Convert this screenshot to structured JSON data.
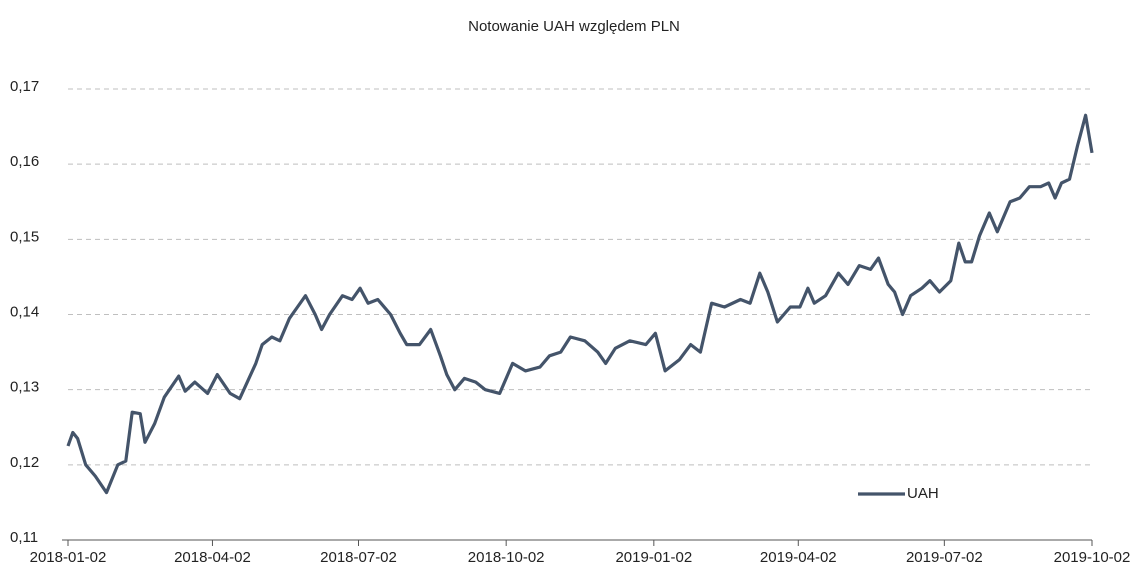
{
  "chart_data": {
    "type": "line",
    "title": "Notowanie UAH względem PLN",
    "x": [
      "2018-01-02",
      "2018-01-05",
      "2018-01-08",
      "2018-01-13",
      "2018-01-19",
      "2018-01-26",
      "2018-02-02",
      "2018-02-07",
      "2018-02-11",
      "2018-02-16",
      "2018-02-19",
      "2018-02-25",
      "2018-03-03",
      "2018-03-12",
      "2018-03-16",
      "2018-03-22",
      "2018-03-30",
      "2018-04-05",
      "2018-04-13",
      "2018-04-19",
      "2018-04-29",
      "2018-05-03",
      "2018-05-09",
      "2018-05-14",
      "2018-05-20",
      "2018-05-25",
      "2018-05-30",
      "2018-06-05",
      "2018-06-09",
      "2018-06-14",
      "2018-06-22",
      "2018-06-28",
      "2018-07-03",
      "2018-07-08",
      "2018-07-14",
      "2018-07-22",
      "2018-07-28",
      "2018-08-01",
      "2018-08-09",
      "2018-08-16",
      "2018-08-22",
      "2018-08-26",
      "2018-08-31",
      "2018-09-06",
      "2018-09-13",
      "2018-09-19",
      "2018-09-28",
      "2018-10-06",
      "2018-10-14",
      "2018-10-23",
      "2018-10-29",
      "2018-11-05",
      "2018-11-11",
      "2018-11-20",
      "2018-11-28",
      "2018-12-03",
      "2018-12-09",
      "2018-12-18",
      "2018-12-28",
      "2019-01-03",
      "2019-01-09",
      "2019-01-18",
      "2019-01-25",
      "2019-01-31",
      "2019-02-07",
      "2019-02-15",
      "2019-02-25",
      "2019-03-03",
      "2019-03-09",
      "2019-03-14",
      "2019-03-20",
      "2019-03-28",
      "2019-04-03",
      "2019-04-08",
      "2019-04-12",
      "2019-04-19",
      "2019-04-27",
      "2019-05-03",
      "2019-05-10",
      "2019-05-17",
      "2019-05-22",
      "2019-05-28",
      "2019-06-01",
      "2019-06-06",
      "2019-06-11",
      "2019-06-18",
      "2019-06-23",
      "2019-06-29",
      "2019-07-06",
      "2019-07-11",
      "2019-07-15",
      "2019-07-19",
      "2019-07-24",
      "2019-07-30",
      "2019-08-04",
      "2019-08-12",
      "2019-08-18",
      "2019-08-24",
      "2019-08-31",
      "2019-09-05",
      "2019-09-09",
      "2019-09-13",
      "2019-09-18",
      "2019-09-23",
      "2019-09-28",
      "2019-10-02"
    ],
    "series": [
      {
        "name": "UAH",
        "color": "#44546a",
        "values": [
          0.1225,
          0.1243,
          0.1235,
          0.12,
          0.1185,
          0.1163,
          0.12,
          0.1205,
          0.127,
          0.1268,
          0.123,
          0.1255,
          0.129,
          0.1318,
          0.1298,
          0.131,
          0.1295,
          0.132,
          0.1295,
          0.1288,
          0.1335,
          0.136,
          0.137,
          0.1365,
          0.1395,
          0.141,
          0.1425,
          0.14,
          0.138,
          0.14,
          0.1425,
          0.142,
          0.1435,
          0.1415,
          0.142,
          0.14,
          0.1375,
          0.136,
          0.136,
          0.138,
          0.1345,
          0.132,
          0.13,
          0.1315,
          0.131,
          0.13,
          0.1295,
          0.1335,
          0.1325,
          0.133,
          0.1345,
          0.135,
          0.137,
          0.1365,
          0.135,
          0.1335,
          0.1355,
          0.1365,
          0.136,
          0.1375,
          0.1325,
          0.134,
          0.136,
          0.135,
          0.1415,
          0.141,
          0.142,
          0.1415,
          0.1455,
          0.143,
          0.139,
          0.141,
          0.141,
          0.1435,
          0.1415,
          0.1425,
          0.1455,
          0.144,
          0.1465,
          0.146,
          0.1475,
          0.144,
          0.143,
          0.14,
          0.1425,
          0.1435,
          0.1445,
          0.143,
          0.1445,
          0.1495,
          0.147,
          0.147,
          0.1505,
          0.1535,
          0.151,
          0.155,
          0.1555,
          0.157,
          0.157,
          0.1575,
          0.1555,
          0.1575,
          0.158,
          0.1625,
          0.1665,
          0.1615
        ]
      }
    ],
    "xlim": [
      "2018-01-02",
      "2019-10-02"
    ],
    "xticks": [
      "2018-01-02",
      "2018-04-02",
      "2018-07-02",
      "2018-10-02",
      "2019-01-02",
      "2019-04-02",
      "2019-07-02",
      "2019-10-02"
    ],
    "ylim": [
      0.11,
      0.17
    ],
    "yticks": [
      {
        "value": 0.11,
        "label": "0,11"
      },
      {
        "value": 0.12,
        "label": "0,12"
      },
      {
        "value": 0.13,
        "label": "0,13"
      },
      {
        "value": 0.14,
        "label": "0,14"
      },
      {
        "value": 0.15,
        "label": "0,15"
      },
      {
        "value": 0.16,
        "label": "0,16"
      },
      {
        "value": 0.17,
        "label": "0,17"
      }
    ],
    "grid": true,
    "legend": "lower right"
  }
}
